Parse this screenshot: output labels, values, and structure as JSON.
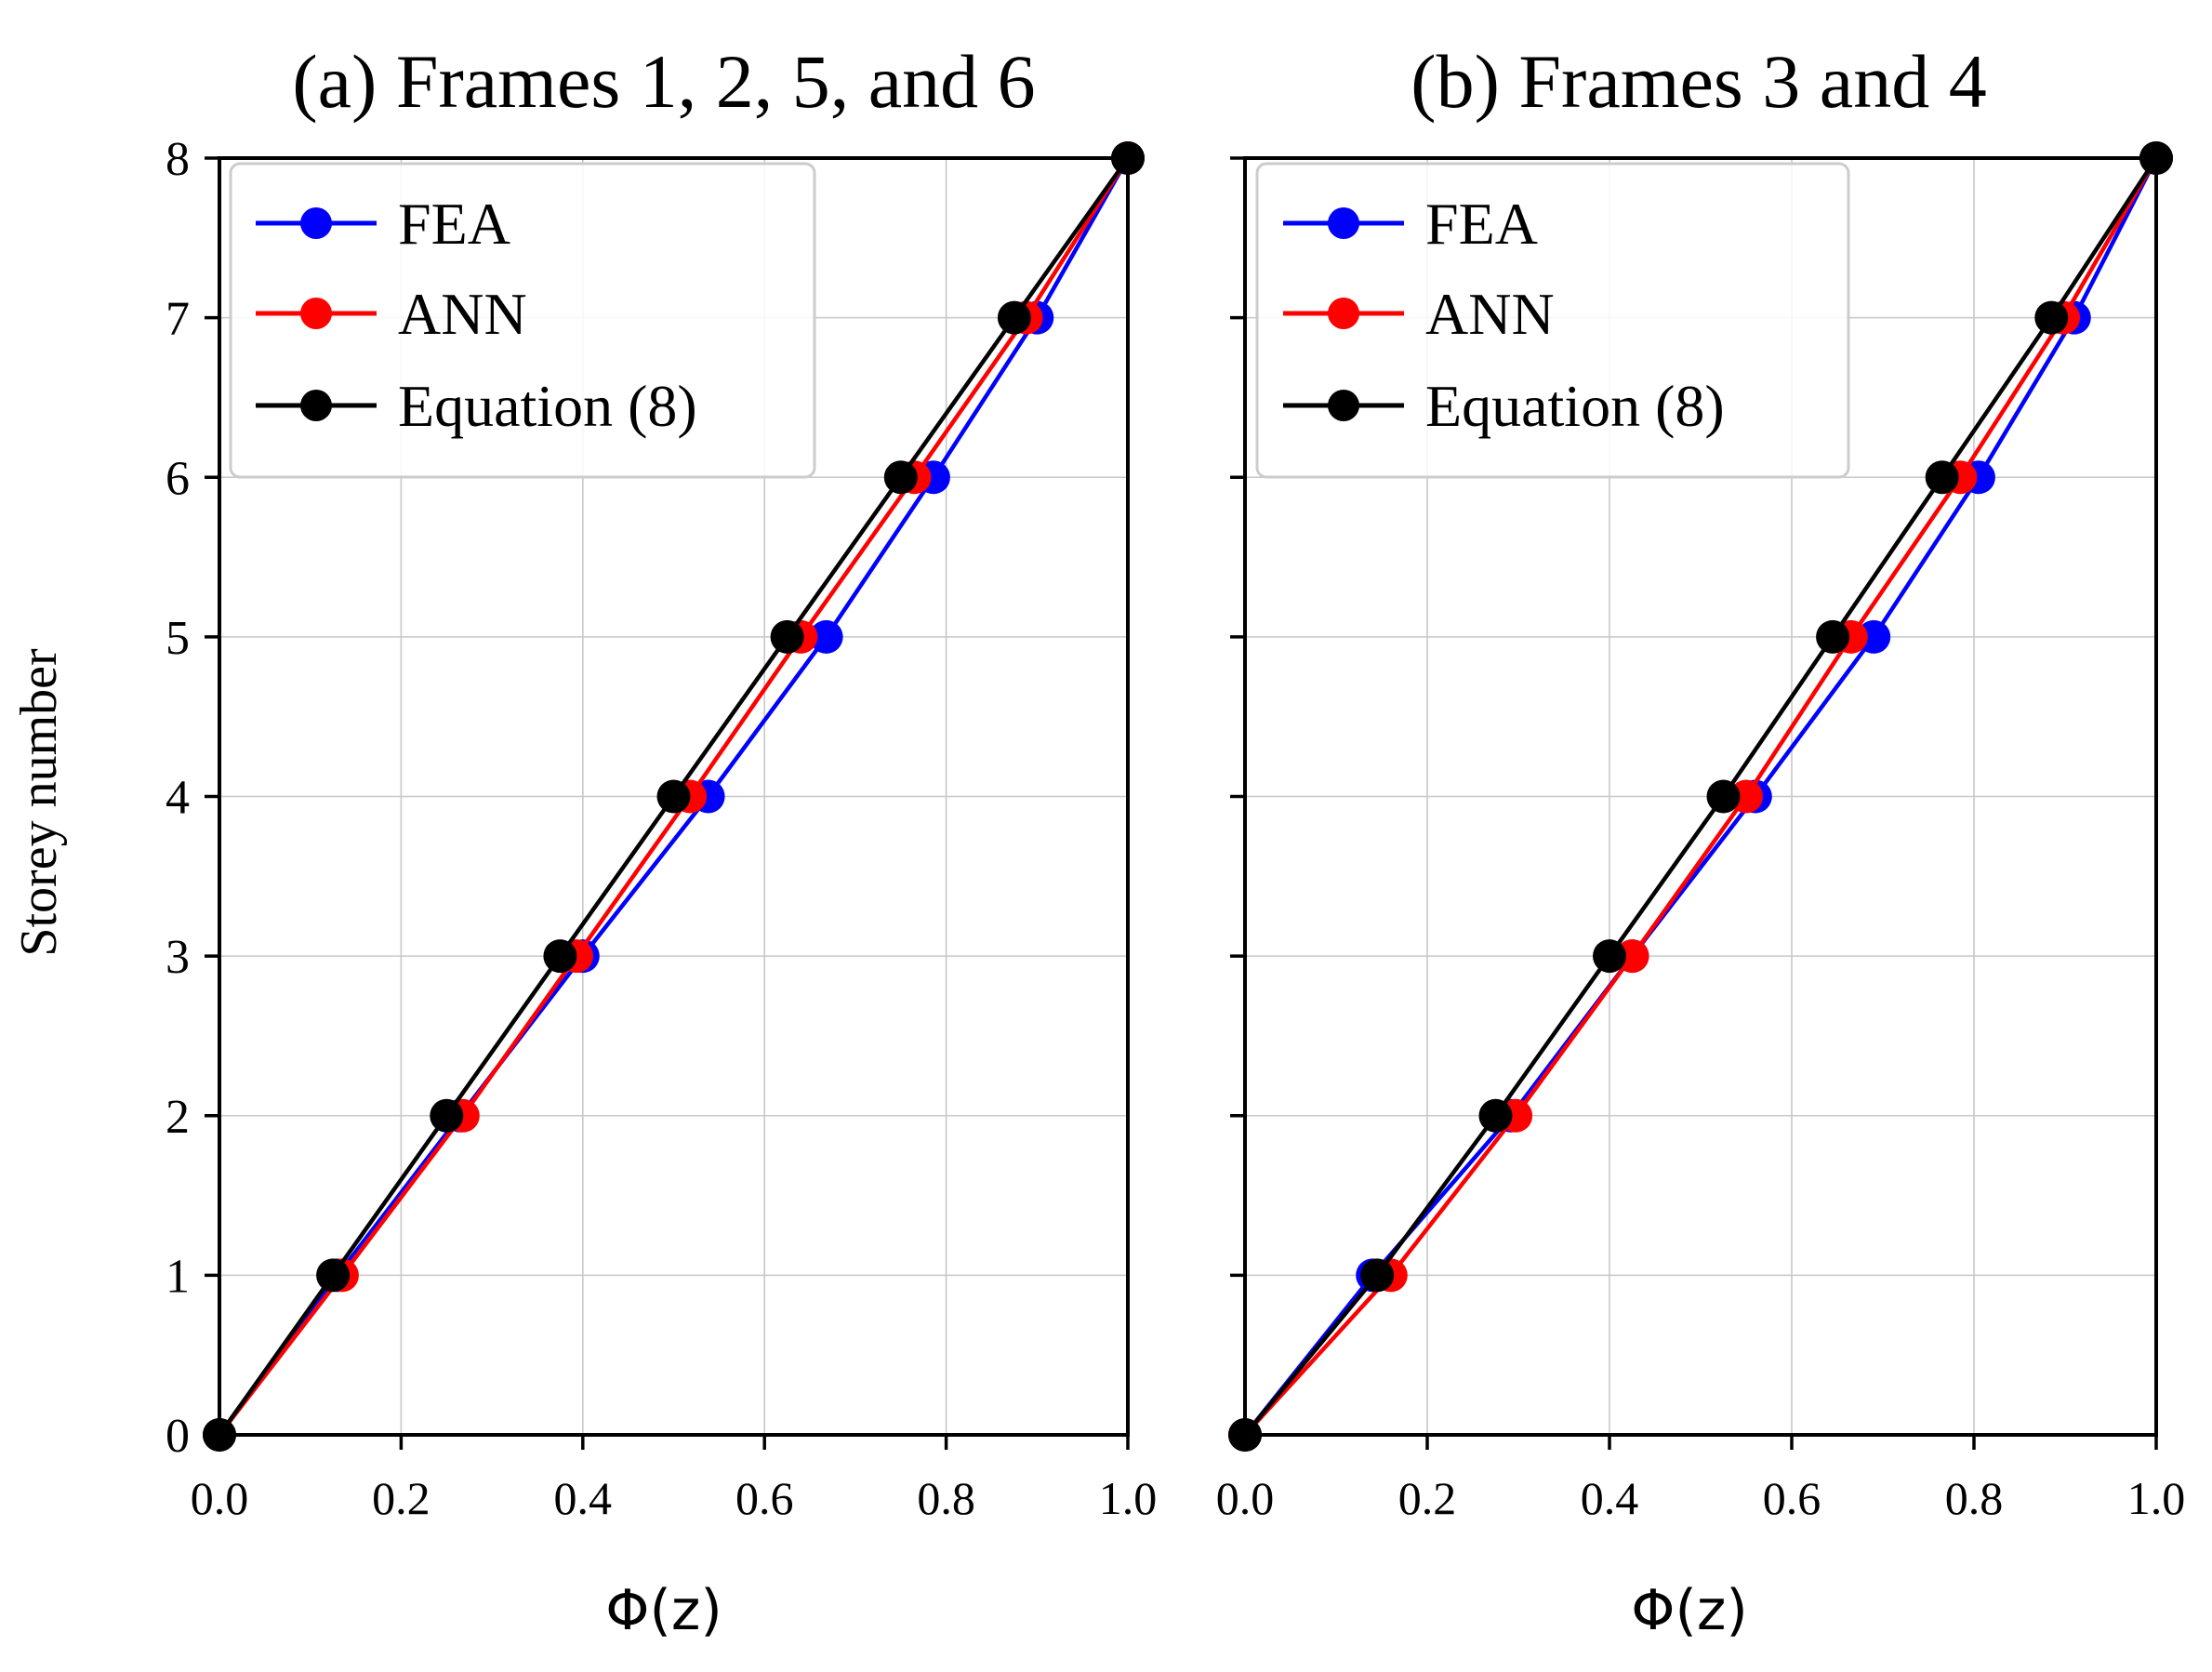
{
  "chart_data": [
    {
      "type": "line",
      "title": "(a) Frames 1, 2, 5, and 6",
      "xlabel_phi": "Φ",
      "xlabel_arg": "z",
      "ylabel": "Storey number",
      "xlim": [
        0.0,
        1.0
      ],
      "ylim": [
        0,
        8
      ],
      "xticks": [
        "0.0",
        "0.2",
        "0.4",
        "0.6",
        "0.8",
        "1.0"
      ],
      "yticks": [
        "0",
        "1",
        "2",
        "3",
        "4",
        "5",
        "6",
        "7",
        "8"
      ],
      "grid": true,
      "legend_position": "top-left",
      "y": [
        0,
        1,
        2,
        3,
        4,
        5,
        6,
        7,
        8
      ],
      "series": [
        {
          "name": "FEA",
          "color": "#0000ff",
          "x": [
            0.0,
            0.13,
            0.265,
            0.4,
            0.538,
            0.668,
            0.786,
            0.9,
            1.0
          ]
        },
        {
          "name": "ANN",
          "color": "#ff0000",
          "x": [
            0.0,
            0.135,
            0.268,
            0.393,
            0.518,
            0.64,
            0.765,
            0.888,
            1.0
          ]
        },
        {
          "name": "Equation (8)",
          "color": "#000000",
          "x": [
            0.0,
            0.125,
            0.25,
            0.375,
            0.5,
            0.625,
            0.75,
            0.875,
            1.0
          ]
        }
      ]
    },
    {
      "type": "line",
      "title": "(b) Frames 3 and 4",
      "xlabel_phi": "Φ",
      "xlabel_arg": "z",
      "ylabel": "",
      "xlim": [
        0.0,
        1.0
      ],
      "ylim": [
        0,
        8
      ],
      "xticks": [
        "0.0",
        "0.2",
        "0.4",
        "0.6",
        "0.8",
        "1.0"
      ],
      "yticks": [],
      "grid": true,
      "legend_position": "top-left",
      "y": [
        0,
        1,
        2,
        3,
        4,
        5,
        6,
        7,
        8
      ],
      "series": [
        {
          "name": "FEA",
          "color": "#0000ff",
          "x": [
            0.0,
            0.14,
            0.292,
            0.425,
            0.56,
            0.69,
            0.805,
            0.91,
            1.0
          ]
        },
        {
          "name": "ANN",
          "color": "#ff0000",
          "x": [
            0.0,
            0.16,
            0.297,
            0.425,
            0.55,
            0.665,
            0.785,
            0.898,
            1.0
          ]
        },
        {
          "name": "Equation (8)",
          "color": "#000000",
          "x": [
            0.0,
            0.145,
            0.275,
            0.4,
            0.525,
            0.645,
            0.765,
            0.885,
            1.0
          ]
        }
      ]
    }
  ]
}
